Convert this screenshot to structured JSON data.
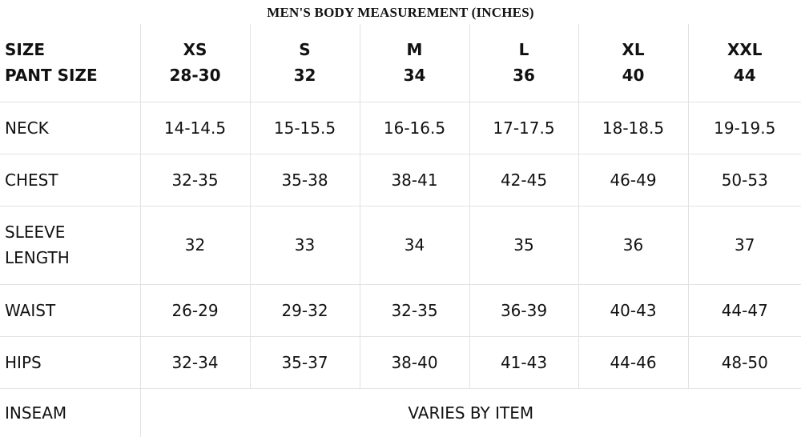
{
  "title": "MEN'S BODY MEASUREMENT (INCHES)",
  "header": {
    "label": [
      "SIZE",
      "PANT SIZE"
    ],
    "columns": [
      {
        "size": "XS",
        "pant": "28-30"
      },
      {
        "size": "S",
        "pant": "32"
      },
      {
        "size": "M",
        "pant": "34"
      },
      {
        "size": "L",
        "pant": "36"
      },
      {
        "size": "XL",
        "pant": "40"
      },
      {
        "size": "XXL",
        "pant": "44"
      }
    ]
  },
  "rows": [
    {
      "label": "NECK",
      "cells": [
        "14-14.5",
        "15-15.5",
        "16-16.5",
        "17-17.5",
        "18-18.5",
        "19-19.5"
      ]
    },
    {
      "label": "CHEST",
      "cells": [
        "32-35",
        "35-38",
        "38-41",
        "42-45",
        "46-49",
        "50-53"
      ]
    },
    {
      "label": "SLEEVE LENGTH",
      "cells": [
        "32",
        "33",
        "34",
        "35",
        "36",
        "37"
      ]
    },
    {
      "label": "WAIST",
      "cells": [
        "26-29",
        "29-32",
        "32-35",
        "36-39",
        "40-43",
        "44-47"
      ]
    },
    {
      "label": "HIPS",
      "cells": [
        "32-34",
        "35-37",
        "38-40",
        "41-43",
        "44-46",
        "48-50"
      ]
    }
  ],
  "inseam": {
    "label": "INSEAM",
    "value": "VARIES BY ITEM"
  }
}
